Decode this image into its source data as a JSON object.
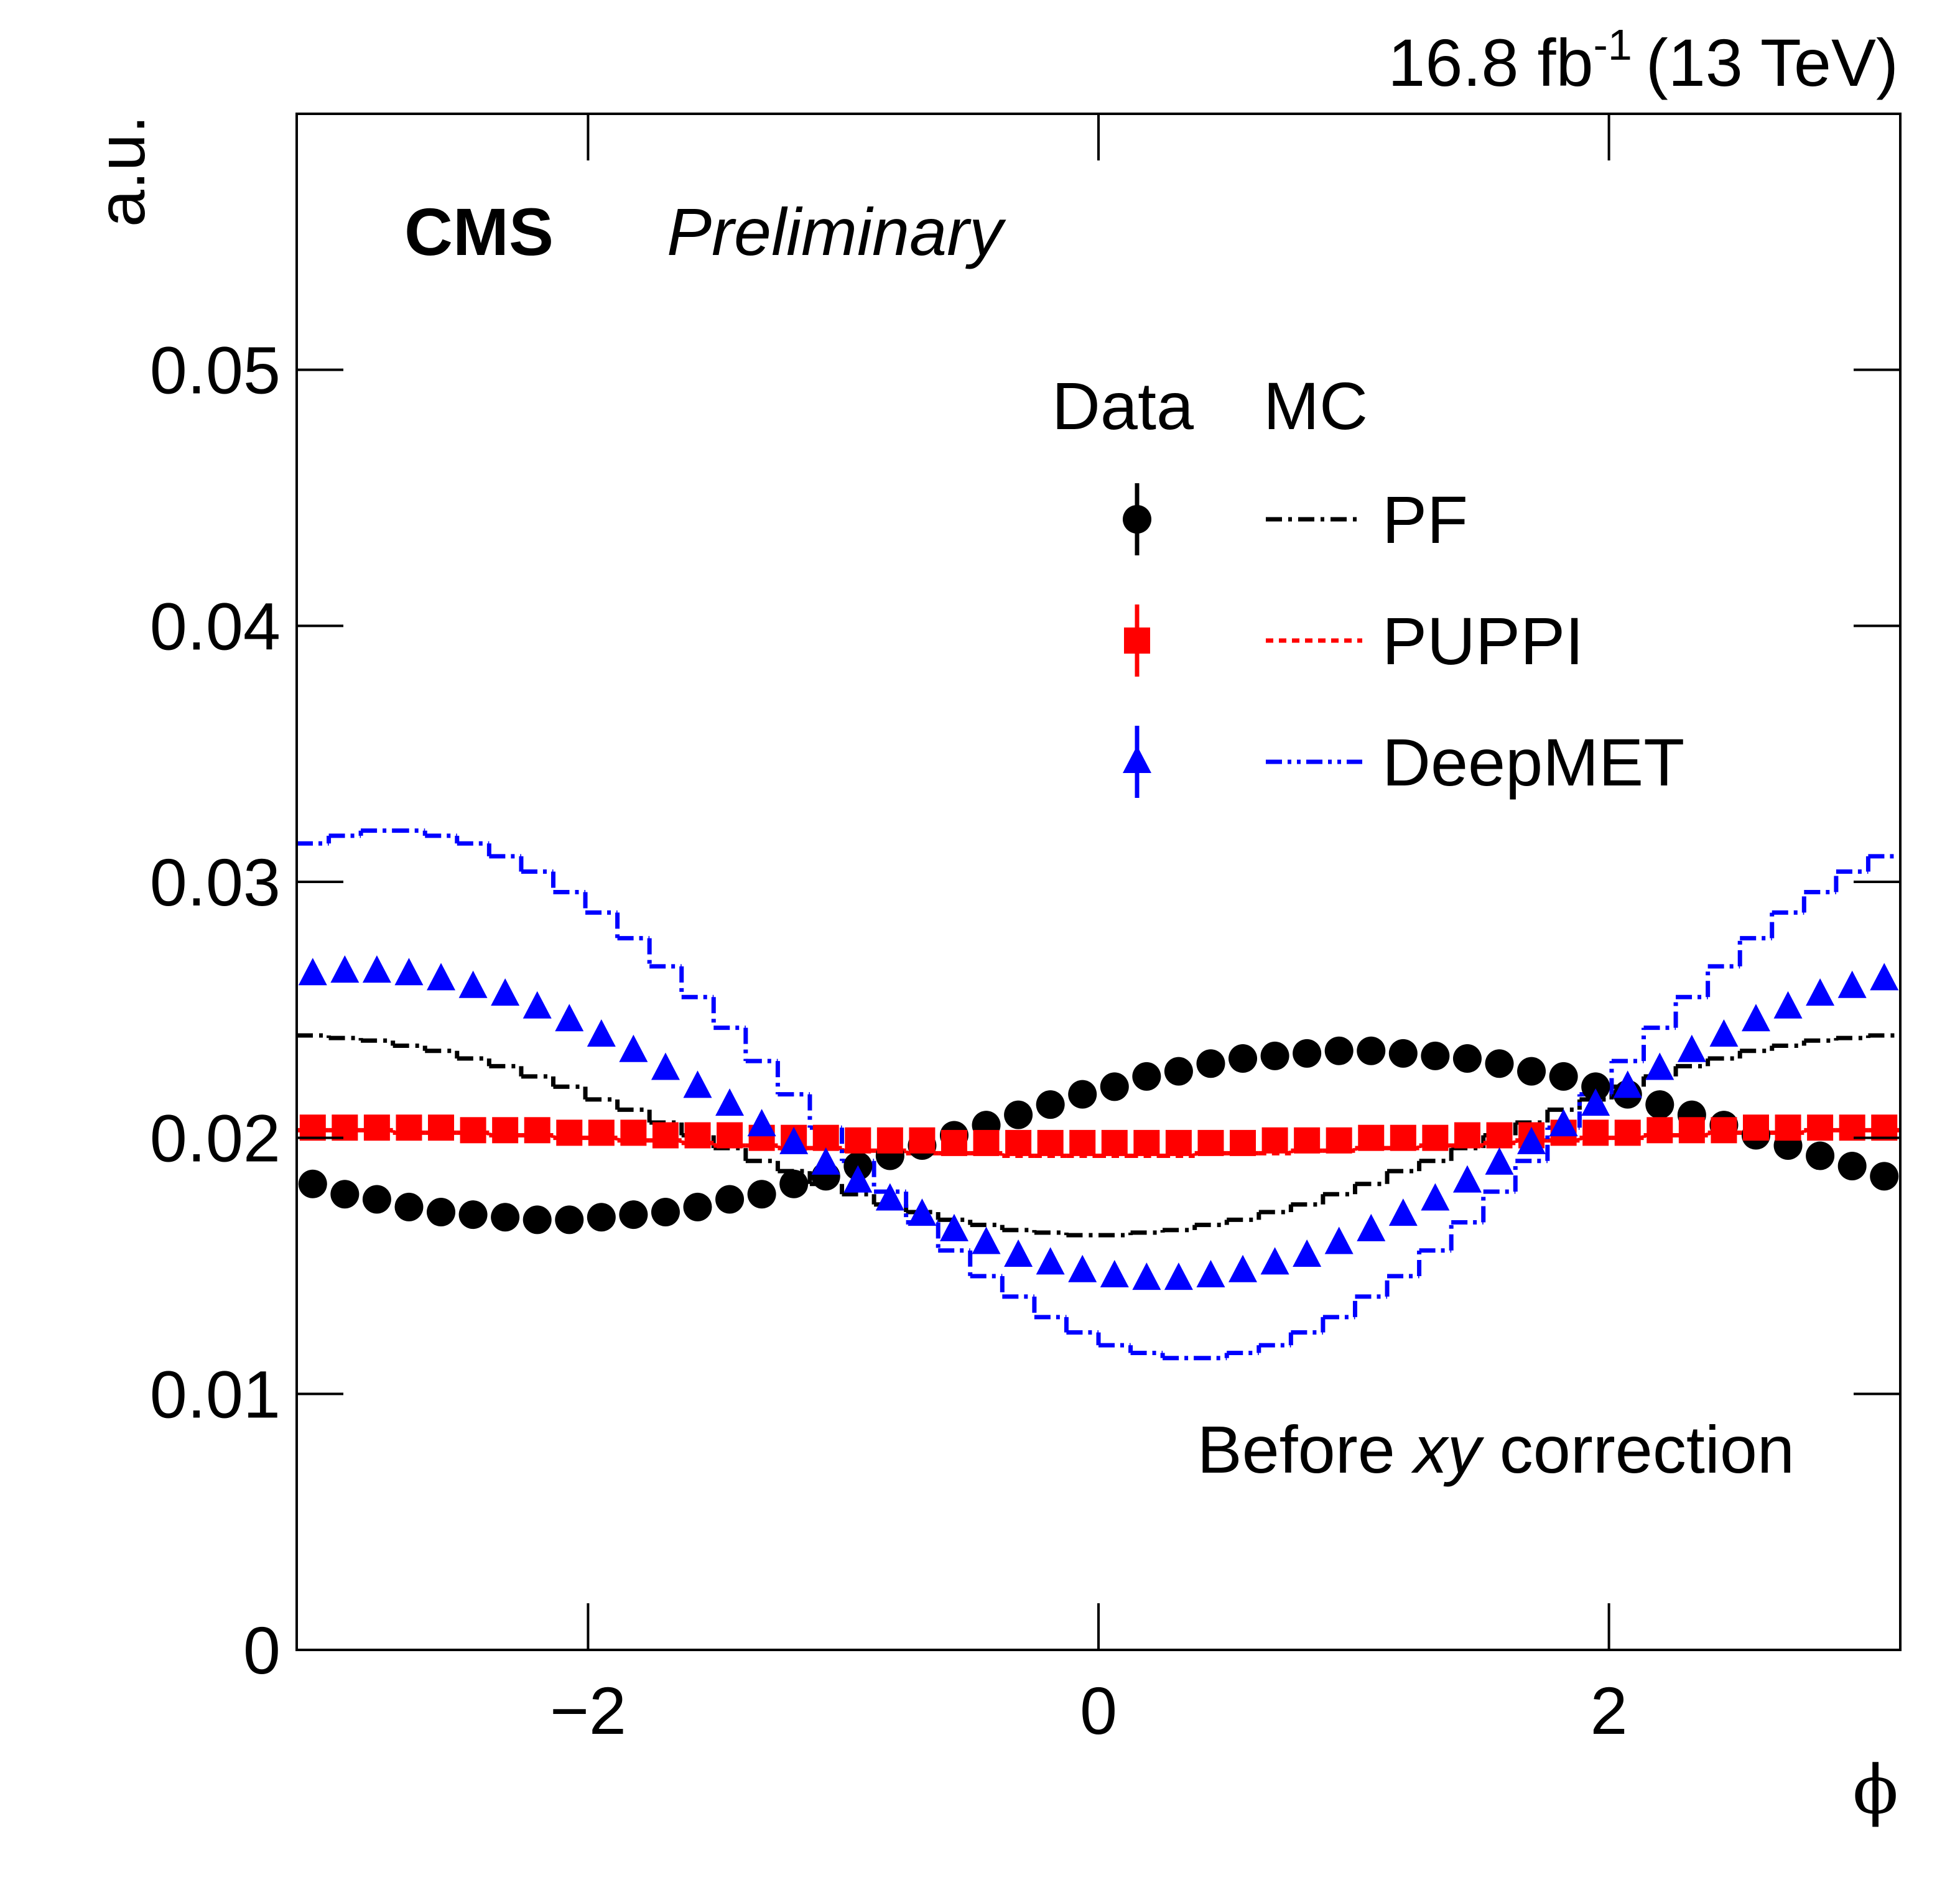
{
  "chart_data": {
    "type": "step-histogram",
    "luminosity": "16.8 fb",
    "luminosity_exponent": "-1",
    "energy": "(13 TeV)",
    "experiment": "CMS",
    "status": "Preliminary",
    "ylabel": "a.u.",
    "xlabel": "ϕ",
    "annotation": {
      "before": "Before ",
      "italic": "xy",
      "after": " correction"
    },
    "legend_headers": [
      "Data",
      "MC"
    ],
    "xlim": [
      -3.1416,
      3.1416
    ],
    "xticks": [
      {
        "value": -2,
        "label": "−2"
      },
      0,
      2
    ],
    "ylim": [
      0,
      0.06
    ],
    "yticks": [
      0,
      0.01,
      0.02,
      0.03,
      0.04,
      0.05
    ],
    "bins": [
      -3.1416,
      -3.0159,
      -2.8903,
      -2.7646,
      -2.6389,
      -2.5133,
      -2.3876,
      -2.2619,
      -2.1363,
      -2.0106,
      -1.885,
      -1.7593,
      -1.6336,
      -1.508,
      -1.3823,
      -1.2566,
      -1.131,
      -1.0053,
      -0.8796,
      -0.754,
      -0.6283,
      -0.5027,
      -0.377,
      -0.2513,
      -0.1257,
      0,
      0.1257,
      0.2513,
      0.377,
      0.5027,
      0.6283,
      0.754,
      0.8796,
      1.0053,
      1.131,
      1.2566,
      1.3823,
      1.508,
      1.6336,
      1.7593,
      1.885,
      2.0106,
      2.1363,
      2.2619,
      2.3876,
      2.5133,
      2.6389,
      2.7646,
      2.8903,
      3.0159,
      3.1416
    ],
    "series": [
      {
        "name": "PF",
        "color": "#000000",
        "marker": "circle",
        "dash": "dash-dot",
        "data_values": [
          0.0182,
          0.0178,
          0.0176,
          0.0173,
          0.0171,
          0.017,
          0.0169,
          0.0168,
          0.0168,
          0.0169,
          0.017,
          0.0171,
          0.0173,
          0.0176,
          0.0178,
          0.0182,
          0.0185,
          0.0189,
          0.0193,
          0.0197,
          0.0201,
          0.0205,
          0.0209,
          0.0213,
          0.0217,
          0.022,
          0.0224,
          0.0226,
          0.0229,
          0.0231,
          0.0232,
          0.0233,
          0.0234,
          0.0234,
          0.0233,
          0.0232,
          0.0231,
          0.0229,
          0.0226,
          0.0224,
          0.022,
          0.0217,
          0.0213,
          0.0209,
          0.0205,
          0.0201,
          0.0197,
          0.0193,
          0.0189,
          0.0185
        ],
        "mc_values": [
          0.024,
          0.0239,
          0.0238,
          0.0236,
          0.0234,
          0.0231,
          0.0228,
          0.0224,
          0.022,
          0.0215,
          0.0211,
          0.0206,
          0.0201,
          0.0196,
          0.0191,
          0.0187,
          0.0182,
          0.0178,
          0.0174,
          0.0171,
          0.0168,
          0.0166,
          0.0164,
          0.0163,
          0.0162,
          0.0162,
          0.0163,
          0.0164,
          0.0166,
          0.0168,
          0.0171,
          0.0174,
          0.0178,
          0.0182,
          0.0187,
          0.0191,
          0.0196,
          0.0201,
          0.0206,
          0.0211,
          0.0215,
          0.022,
          0.0224,
          0.0228,
          0.0231,
          0.0234,
          0.0236,
          0.0238,
          0.0239,
          0.024
        ]
      },
      {
        "name": "PUPPI",
        "color": "#ff0000",
        "marker": "square",
        "dash": "dotted",
        "data_values": [
          0.0204,
          0.0204,
          0.0204,
          0.0204,
          0.0204,
          0.0203,
          0.0203,
          0.0203,
          0.0202,
          0.0202,
          0.0202,
          0.0201,
          0.0201,
          0.0201,
          0.02,
          0.02,
          0.02,
          0.0199,
          0.0199,
          0.0199,
          0.0198,
          0.0198,
          0.0198,
          0.0198,
          0.0198,
          0.0198,
          0.0198,
          0.0198,
          0.0198,
          0.0198,
          0.0199,
          0.0199,
          0.0199,
          0.02,
          0.02,
          0.02,
          0.0201,
          0.0201,
          0.0201,
          0.0202,
          0.0202,
          0.0202,
          0.0203,
          0.0203,
          0.0203,
          0.0204,
          0.0204,
          0.0204,
          0.0204,
          0.0204
        ],
        "mc_values": [
          0.0203,
          0.0203,
          0.0203,
          0.0202,
          0.0202,
          0.0202,
          0.0201,
          0.0201,
          0.02,
          0.02,
          0.0199,
          0.0199,
          0.0198,
          0.0197,
          0.0197,
          0.0196,
          0.0196,
          0.0195,
          0.0195,
          0.0194,
          0.0194,
          0.0194,
          0.0193,
          0.0193,
          0.0193,
          0.0193,
          0.0193,
          0.0193,
          0.0194,
          0.0194,
          0.0194,
          0.0195,
          0.0195,
          0.0196,
          0.0196,
          0.0197,
          0.0197,
          0.0198,
          0.0199,
          0.0199,
          0.02,
          0.02,
          0.0201,
          0.0201,
          0.0202,
          0.0202,
          0.0202,
          0.0203,
          0.0203,
          0.0203
        ]
      },
      {
        "name": "DeepMET",
        "color": "#0000ff",
        "marker": "triangle",
        "dash": "dash-dot-dot",
        "data_values": [
          0.0264,
          0.0265,
          0.0265,
          0.0264,
          0.0262,
          0.0259,
          0.0256,
          0.0251,
          0.0246,
          0.024,
          0.0234,
          0.0227,
          0.022,
          0.0213,
          0.0205,
          0.0198,
          0.019,
          0.0183,
          0.0176,
          0.017,
          0.0164,
          0.0159,
          0.0154,
          0.0151,
          0.0148,
          0.0146,
          0.0145,
          0.0145,
          0.0146,
          0.0148,
          0.0151,
          0.0154,
          0.0159,
          0.0164,
          0.017,
          0.0176,
          0.0183,
          0.019,
          0.0198,
          0.0205,
          0.0213,
          0.022,
          0.0227,
          0.0234,
          0.024,
          0.0246,
          0.0251,
          0.0256,
          0.0259,
          0.0262
        ],
        "mc_values": [
          0.0315,
          0.0318,
          0.032,
          0.032,
          0.0318,
          0.0315,
          0.031,
          0.0304,
          0.0296,
          0.0288,
          0.0278,
          0.0267,
          0.0255,
          0.0243,
          0.023,
          0.0217,
          0.0204,
          0.0191,
          0.0179,
          0.0167,
          0.0156,
          0.0146,
          0.0138,
          0.013,
          0.0124,
          0.0119,
          0.0116,
          0.0114,
          0.0114,
          0.0116,
          0.0119,
          0.0124,
          0.013,
          0.0138,
          0.0146,
          0.0156,
          0.0167,
          0.0179,
          0.0191,
          0.0204,
          0.0217,
          0.023,
          0.0243,
          0.0255,
          0.0267,
          0.0278,
          0.0288,
          0.0296,
          0.0304,
          0.031
        ]
      }
    ]
  }
}
